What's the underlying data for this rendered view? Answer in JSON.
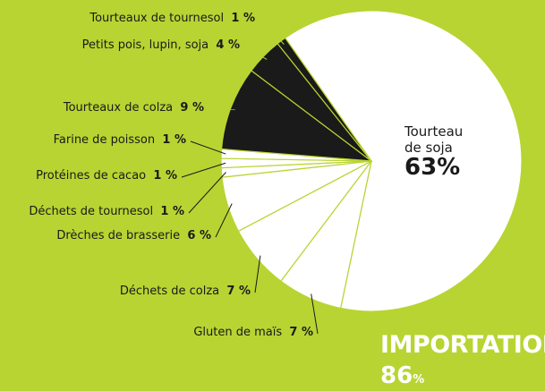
{
  "chart_data": {
    "type": "pie",
    "categories": [
      "Tourteau de soja",
      "Gluten de maïs",
      "Déchets de colza",
      "Drèches de brasserie",
      "Déchets de tournesol",
      "Protéines de cacao",
      "Farine de poisson",
      "Tourteaux de colza",
      "Petits pois, lupin, soja",
      "Tourteaux de tournesol"
    ],
    "values": [
      63,
      7,
      7,
      6,
      1,
      1,
      1,
      9,
      4,
      1
    ],
    "value_labels": [
      "63%",
      "7 %",
      "7 %",
      "6 %",
      "1 %",
      "1 %",
      "1 %",
      "9 %",
      "4 %",
      "1 %"
    ],
    "colors": [
      "#ffffff",
      "#ffffff",
      "#ffffff",
      "#ffffff",
      "#ffffff",
      "#ffffff",
      "#ffffff",
      "#1a1a1a",
      "#1a1a1a",
      "#1a1a1a"
    ],
    "annotation": "IMPORTATION",
    "total": "86",
    "total_unit": "%"
  }
}
